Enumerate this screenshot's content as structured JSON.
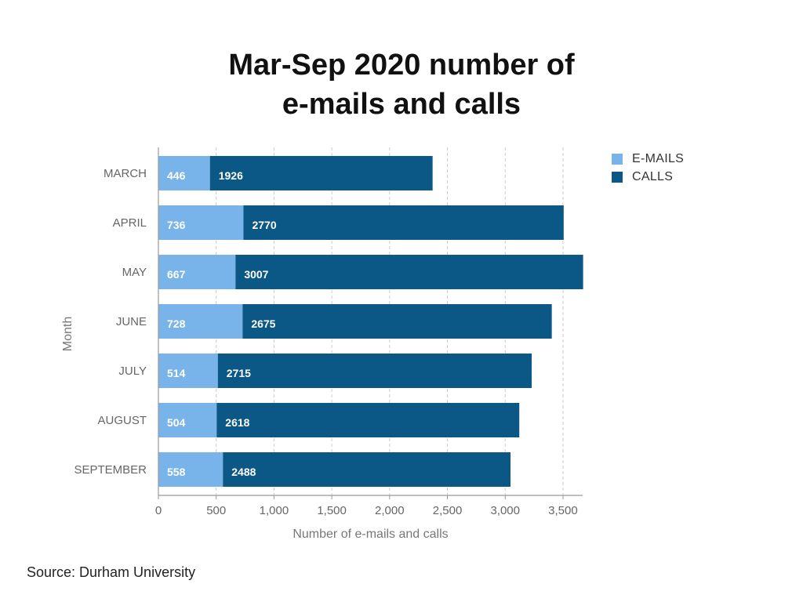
{
  "chart_data": {
    "type": "bar",
    "orientation": "horizontal",
    "stacked": true,
    "title_lines": [
      "Mar-Sep 2020 number of",
      "e-mails and calls"
    ],
    "xlabel": "Number of e-mails and calls",
    "ylabel": "Month",
    "categories": [
      "MARCH",
      "APRIL",
      "MAY",
      "JUNE",
      "JULY",
      "AUGUST",
      "SEPTEMBER"
    ],
    "series": [
      {
        "name": "E-MAILS",
        "color": "#78b4ea",
        "values": [
          446,
          736,
          667,
          728,
          514,
          504,
          558
        ]
      },
      {
        "name": "CALLS",
        "color": "#0b5786",
        "values": [
          1926,
          2770,
          3007,
          2675,
          2715,
          2618,
          2488
        ]
      }
    ],
    "xlim": [
      0,
      3670
    ],
    "xticks": [
      0,
      500,
      1000,
      1500,
      2000,
      2500,
      3000,
      3500
    ],
    "xtick_labels": [
      "0",
      "500",
      "1,000",
      "1,500",
      "2,000",
      "2,500",
      "3,000",
      "3,500"
    ],
    "grid": "vertical-dashed",
    "legend_position": "top-right",
    "data_labels": true
  },
  "source": "Source: Durham University"
}
